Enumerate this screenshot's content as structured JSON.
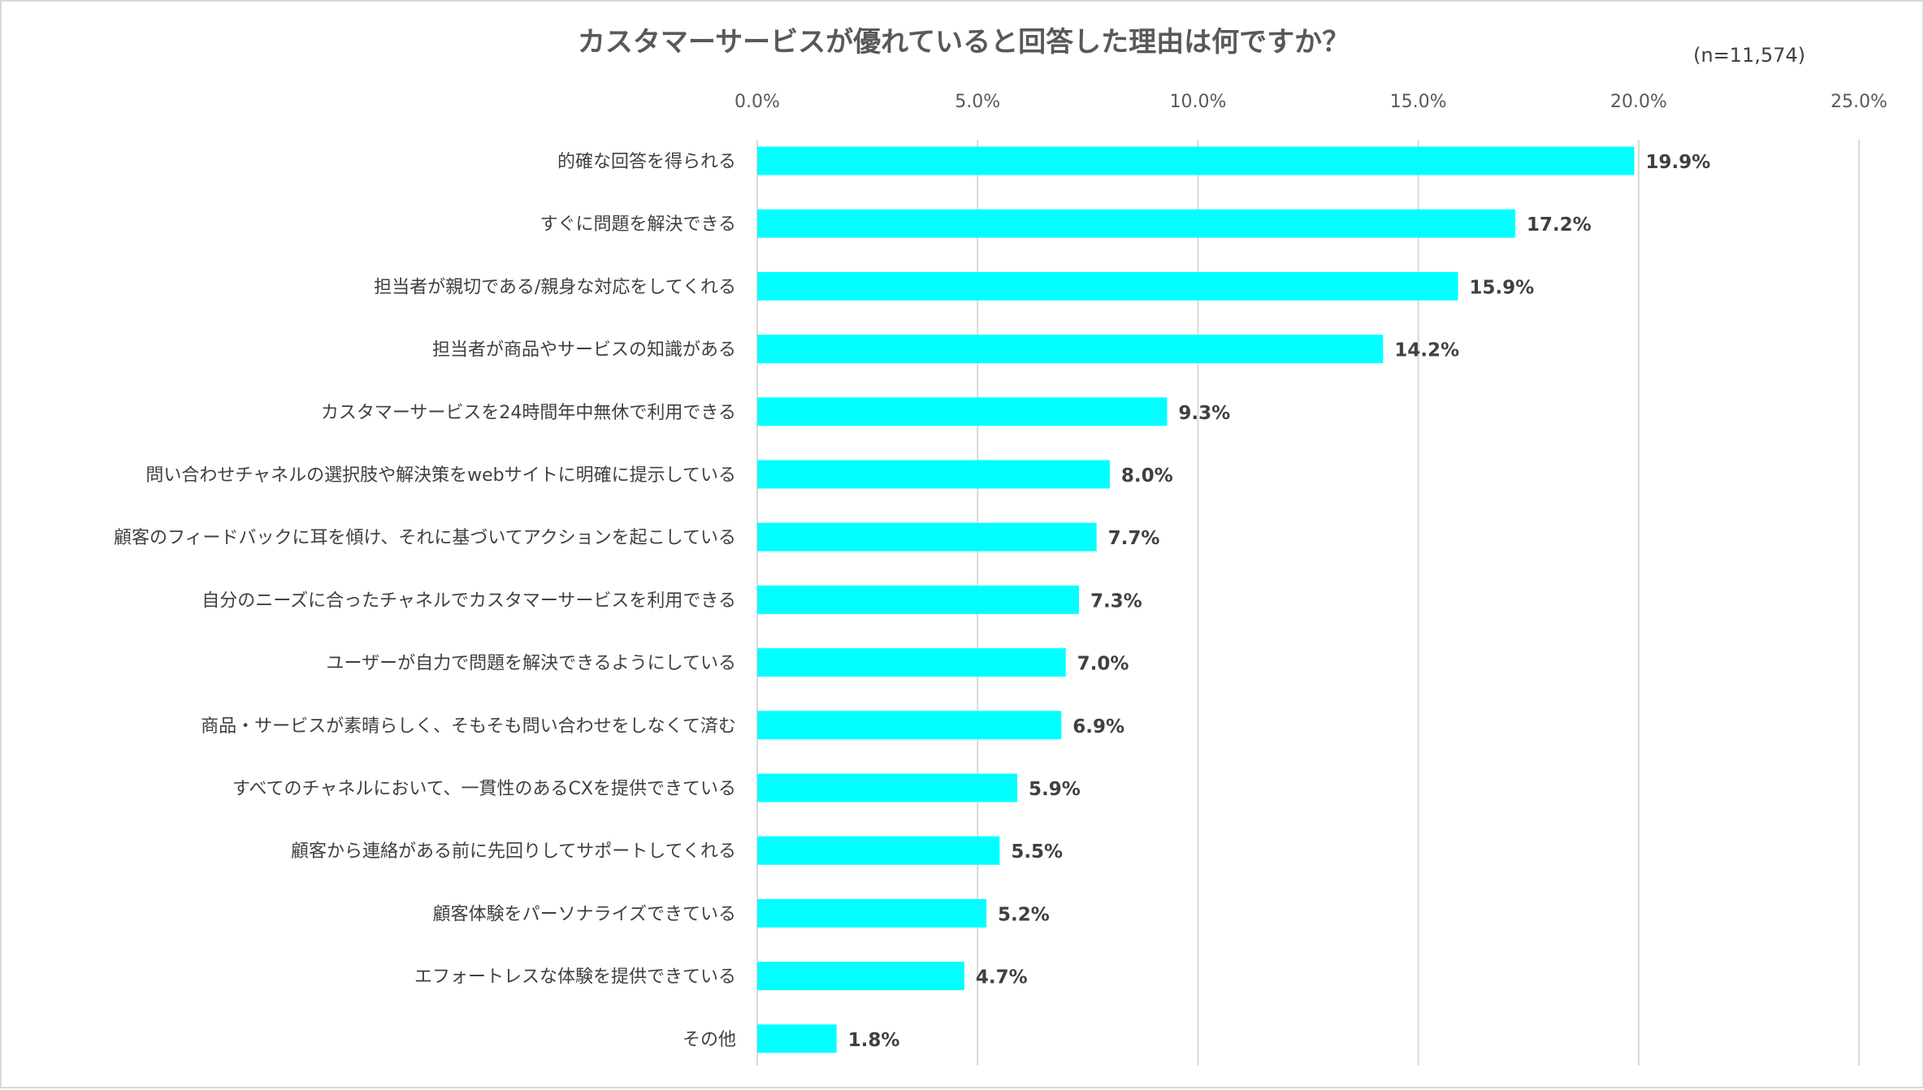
{
  "chart_data": {
    "type": "bar",
    "orientation": "horizontal",
    "title": "カスタマーサービスが優れていると回答した理由は何ですか？",
    "note": "(n=11,574)",
    "xlim": [
      0,
      25
    ],
    "x_ticks": [
      0,
      5,
      10,
      15,
      20,
      25
    ],
    "x_tick_labels": [
      "0.0%",
      "5.0%",
      "10.0%",
      "15.0%",
      "20.0%",
      "25.0%"
    ],
    "grid": true,
    "bar_color": "#00FFFF",
    "categories": [
      "的確な回答を得られる",
      "すぐに問題を解決できる",
      "担当者が親切である/親身な対応をしてくれる",
      "担当者が商品やサービスの知識がある",
      "カスタマーサービスを24時間年中無休で利用できる",
      "問い合わせチャネルの選択肢や解決策をwebサイトに明確に提示している",
      "顧客のフィードバックに耳を傾け、それに基づいてアクションを起こしている",
      "自分のニーズに合ったチャネルでカスタマーサービスを利用できる",
      "ユーザーが自力で問題を解決できるようにしている",
      "商品・サービスが素晴らしく、そもそも問い合わせをしなくて済む",
      "すべてのチャネルにおいて、一貫性のあるCXを提供できている",
      "顧客から連絡がある前に先回りしてサポートしてくれる",
      "顧客体験をパーソナライズできている",
      "エフォートレスな体験を提供できている",
      "その他"
    ],
    "values": [
      19.9,
      17.2,
      15.9,
      14.2,
      9.3,
      8.0,
      7.7,
      7.3,
      7.0,
      6.9,
      5.9,
      5.5,
      5.2,
      4.7,
      1.8
    ],
    "value_labels": [
      "19.9%",
      "17.2%",
      "15.9%",
      "14.2%",
      "9.3%",
      "8.0%",
      "7.7%",
      "7.3%",
      "7.0%",
      "6.9%",
      "5.9%",
      "5.5%",
      "5.2%",
      "4.7%",
      "1.8%"
    ]
  }
}
